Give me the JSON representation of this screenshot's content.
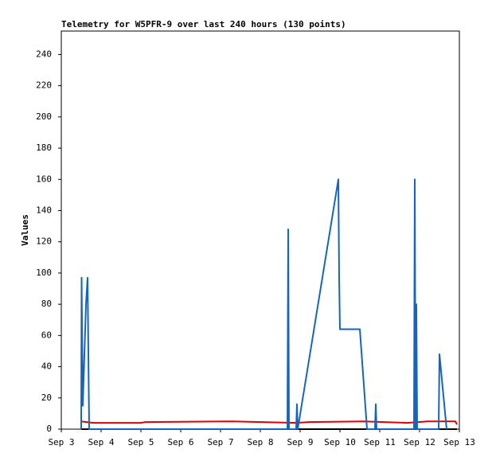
{
  "chart_data": {
    "type": "line",
    "title": "Telemetry for W5PFR-9 over last 240 hours (130 points)",
    "y_label": "Values",
    "xlim": [
      3,
      13
    ],
    "ylim": [
      0,
      255
    ],
    "xticks": [
      {
        "value": 3,
        "label": "Sep 3"
      },
      {
        "value": 4,
        "label": "Sep 4"
      },
      {
        "value": 5,
        "label": "Sep 5"
      },
      {
        "value": 6,
        "label": "Sep 6"
      },
      {
        "value": 7,
        "label": "Sep 7"
      },
      {
        "value": 8,
        "label": "Sep 8"
      },
      {
        "value": 9,
        "label": "Sep 9"
      },
      {
        "value": 10,
        "label": "Sep 10"
      },
      {
        "value": 11,
        "label": "Sep 11"
      },
      {
        "value": 12,
        "label": "Sep 12"
      },
      {
        "value": 13,
        "label": "Sep 13"
      }
    ],
    "yticks": [
      0,
      20,
      40,
      60,
      80,
      100,
      120,
      140,
      160,
      180,
      200,
      220,
      240
    ],
    "series": [
      {
        "color": "#000000",
        "x": [
          3.5,
          12.94
        ],
        "values": [
          0,
          0
        ]
      },
      {
        "color": "#e00000",
        "x": [
          3.5,
          3.8,
          5.0,
          5.1,
          7.3,
          8.9,
          9.2,
          10.6,
          11.7,
          12.2,
          12.9,
          12.94
        ],
        "values": [
          5,
          4,
          4,
          4.5,
          5,
          4,
          4.5,
          5,
          4,
          5,
          5,
          3
        ]
      },
      {
        "color": "#1565c0",
        "x": [
          3.5,
          3.51,
          3.54,
          3.62,
          3.66,
          3.68,
          3.7,
          8.68,
          8.7,
          8.72,
          8.9,
          8.92,
          8.94,
          9.96,
          9.98,
          10.0,
          10.5,
          10.68,
          10.88,
          10.9,
          10.92,
          11.86,
          11.88,
          11.9,
          11.92,
          11.94,
          12.48,
          12.5,
          12.68
        ],
        "values": [
          0,
          97,
          15,
          80,
          97,
          48,
          0,
          0,
          128,
          0,
          0,
          16,
          0,
          160,
          97,
          64,
          64,
          0,
          0,
          16,
          0,
          0,
          160,
          0,
          80,
          0,
          0,
          48,
          0
        ]
      }
    ]
  }
}
